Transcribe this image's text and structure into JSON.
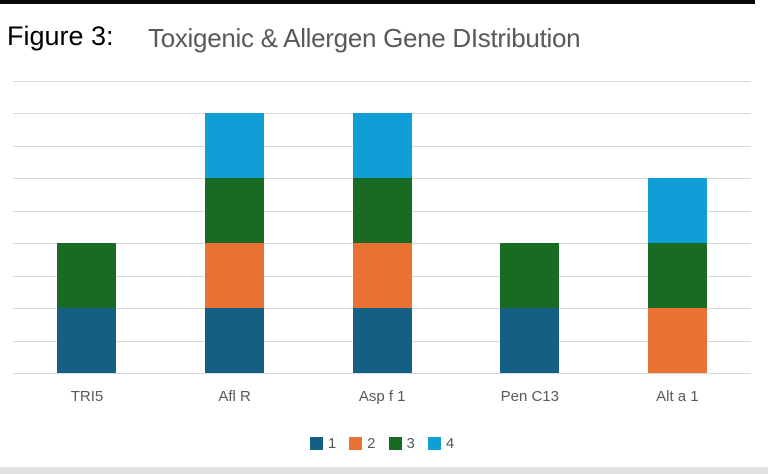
{
  "page": {
    "figure_label": "Figure 3:",
    "top_bar_color": "#0a0a0a",
    "bottom_bar_color": "#e2e2e2"
  },
  "chart_data": {
    "type": "bar",
    "stacked": true,
    "title": "Toxigenic & Allergen Gene DIstribution",
    "categories": [
      "TRI5",
      "Afl R",
      "Asp f 1",
      "Pen C13",
      "Alt a 1"
    ],
    "series": [
      {
        "name": "1",
        "color": "#156082",
        "values": [
          1,
          1,
          1,
          1,
          0
        ]
      },
      {
        "name": "2",
        "color": "#E97132",
        "values": [
          0,
          1,
          1,
          0,
          1
        ]
      },
      {
        "name": "3",
        "color": "#196B24",
        "values": [
          1,
          1,
          1,
          1,
          1
        ]
      },
      {
        "name": "4",
        "color": "#0F9ED5",
        "values": [
          0,
          1,
          1,
          0,
          1
        ]
      }
    ],
    "stack_totals": [
      2,
      4,
      4,
      2,
      3
    ],
    "ylim": [
      0,
      4.5
    ],
    "grid_step": 0.5,
    "gridline_color": "#D9D9D9",
    "axis_label_color": "#595959",
    "legend_position": "bottom",
    "legend_labels": [
      "1",
      "2",
      "3",
      "4"
    ]
  }
}
